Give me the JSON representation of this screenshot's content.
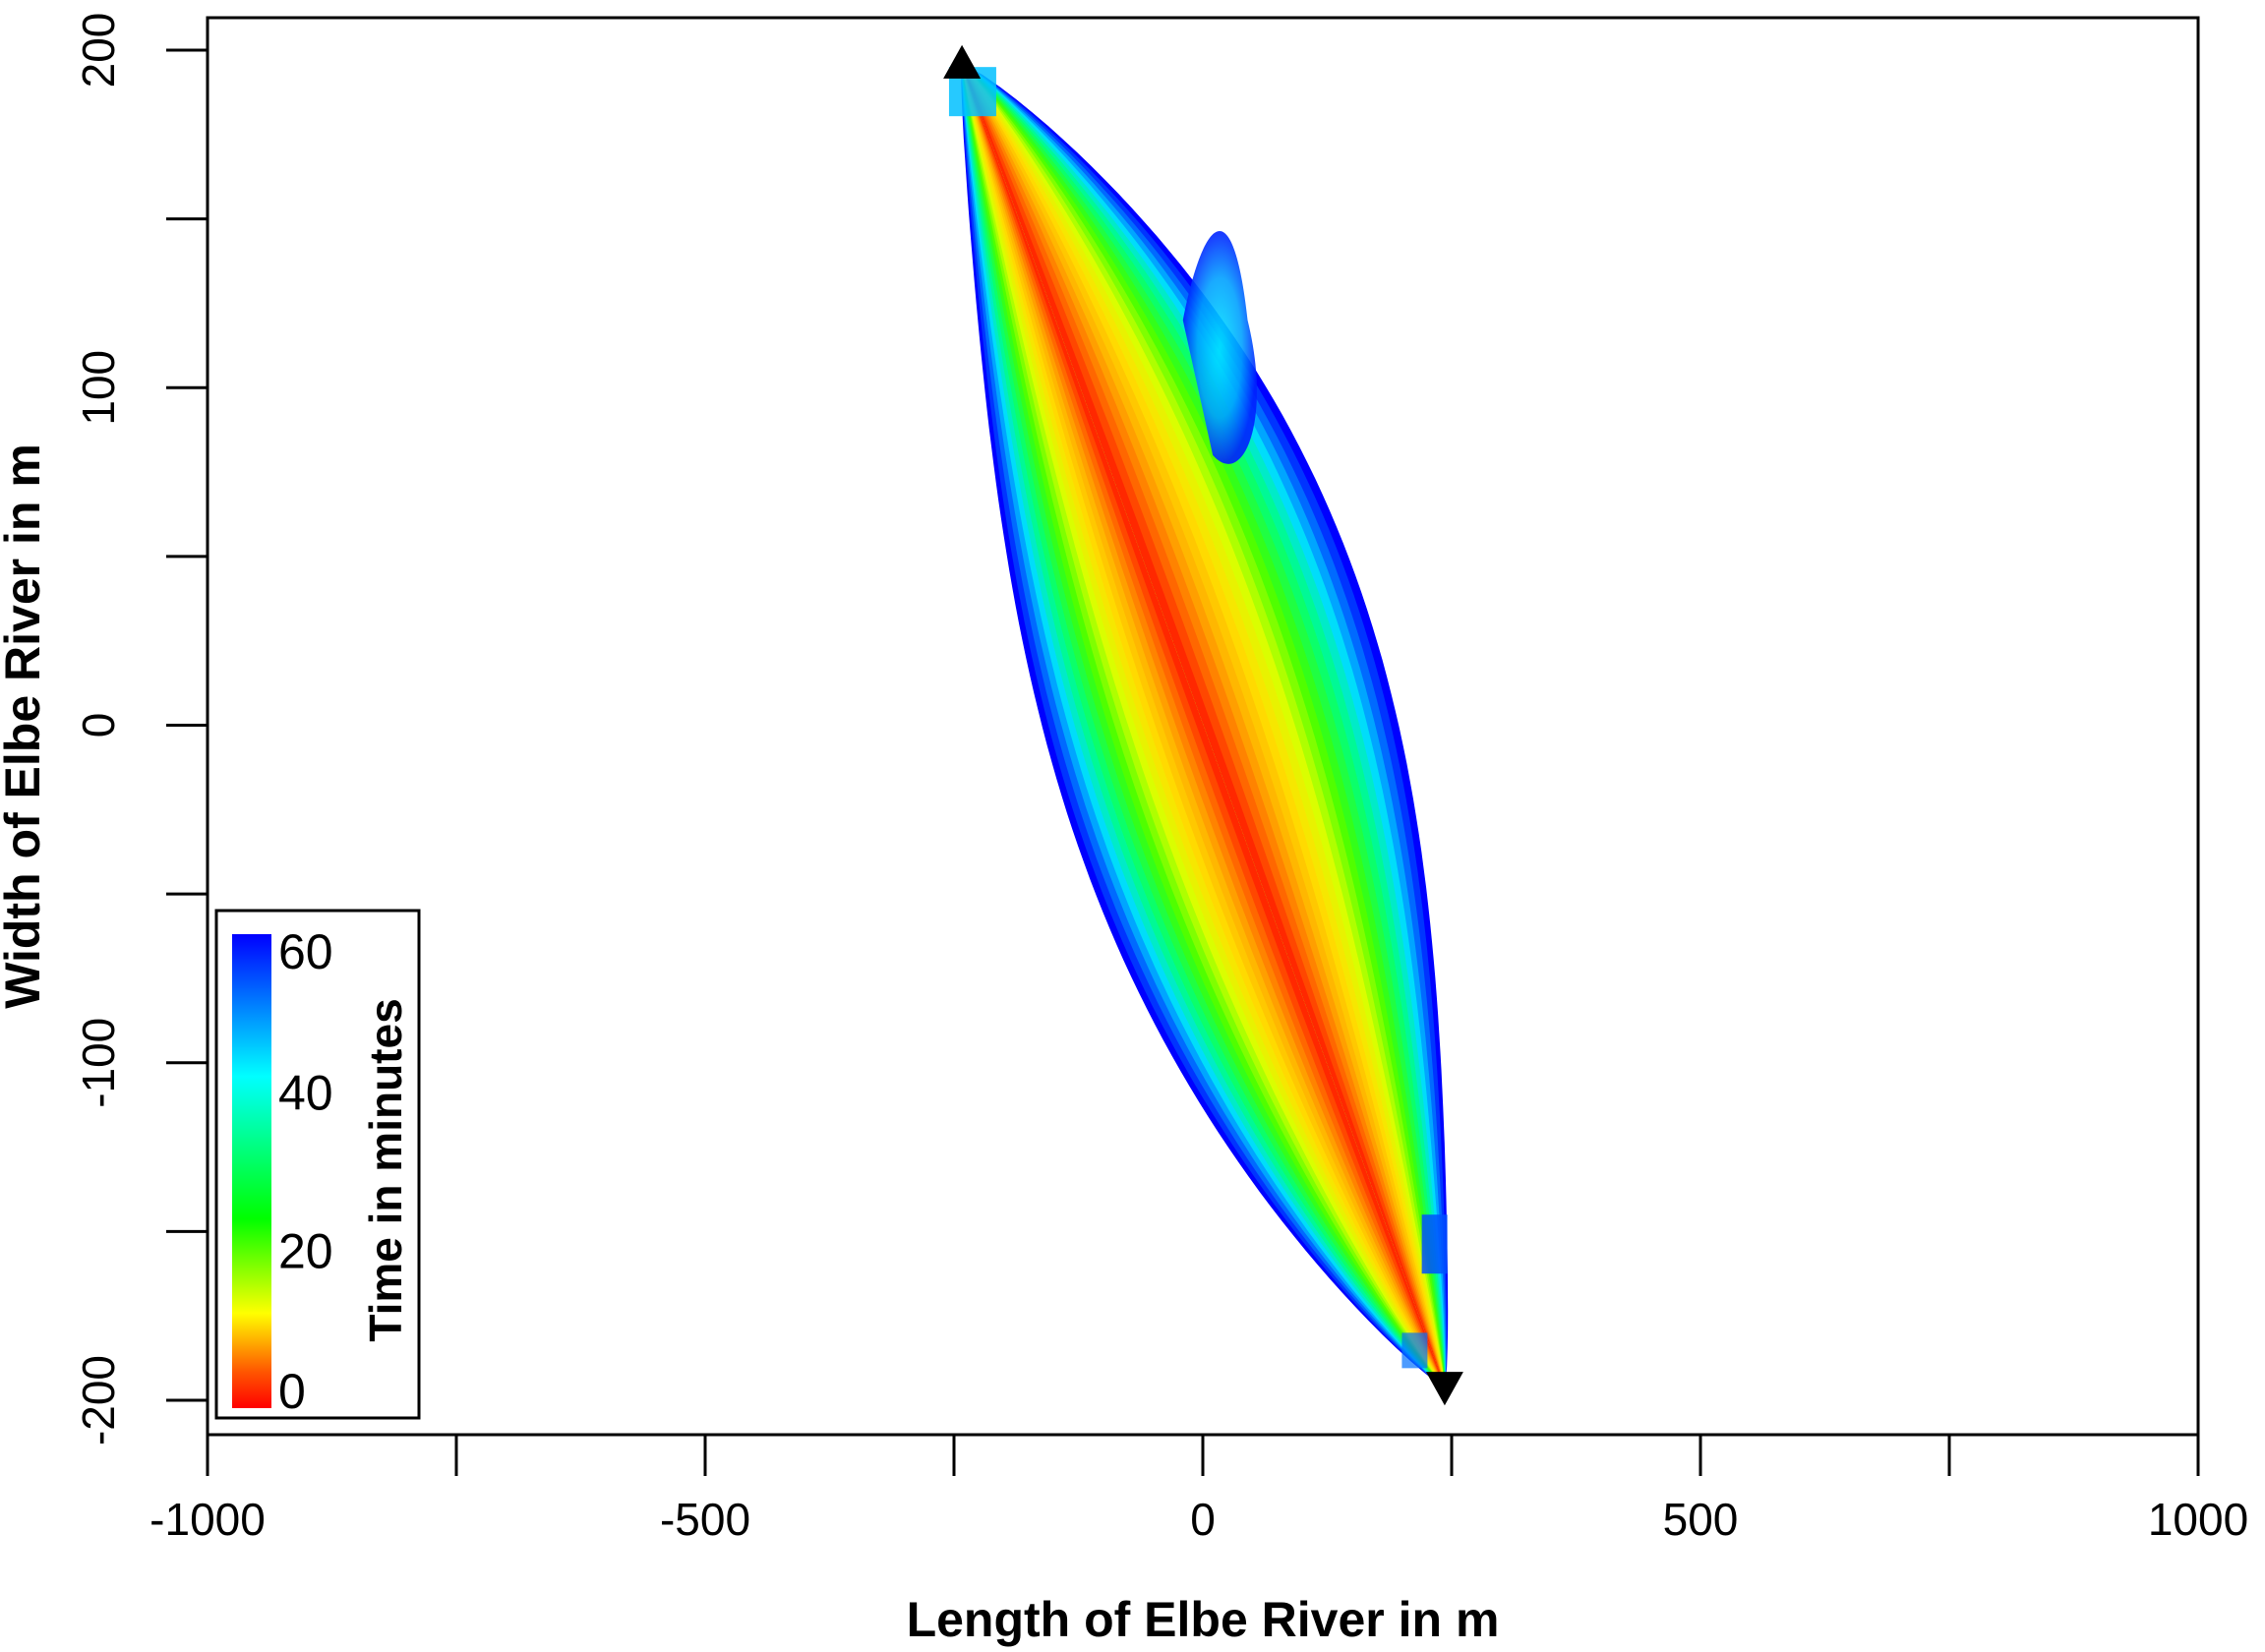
{
  "chart_data": {
    "type": "heatmap",
    "xlabel": "Length of Elbe River in m",
    "ylabel": "Width of Elbe River in m",
    "xlim": [
      -1000,
      1000
    ],
    "ylim": [
      -210,
      200
    ],
    "xticks": [
      -1000,
      -750,
      -500,
      -250,
      0,
      250,
      500,
      750,
      1000
    ],
    "xtick_labels": [
      "-1000",
      "",
      "-500",
      "",
      "0",
      "",
      "500",
      "",
      "1000"
    ],
    "yticks": [
      -200,
      -150,
      -100,
      -50,
      0,
      50,
      100,
      150,
      200
    ],
    "ytick_labels": [
      "-200",
      "",
      "-100",
      "",
      "0",
      "",
      "100",
      "",
      "200"
    ],
    "colorbar": {
      "title": "Time in minutes",
      "range": [
        0,
        60
      ],
      "tick_values": [
        0,
        20,
        40,
        60
      ],
      "tick_labels": [
        "0",
        "20",
        "40",
        "60"
      ],
      "colors": [
        "#ff0000",
        "#ff8000",
        "#ffff00",
        "#00ff00",
        "#00ffff",
        "#0000ff"
      ],
      "placement": "bottom-left"
    },
    "markers": [
      {
        "name": "start",
        "shape": "triangle-up",
        "x": -242,
        "y": 196
      },
      {
        "name": "end",
        "shape": "triangle-down",
        "x": 243,
        "y": -196
      }
    ],
    "colors": {
      "axis": "#000000",
      "background": "#ffffff",
      "marker": "#000000"
    }
  }
}
